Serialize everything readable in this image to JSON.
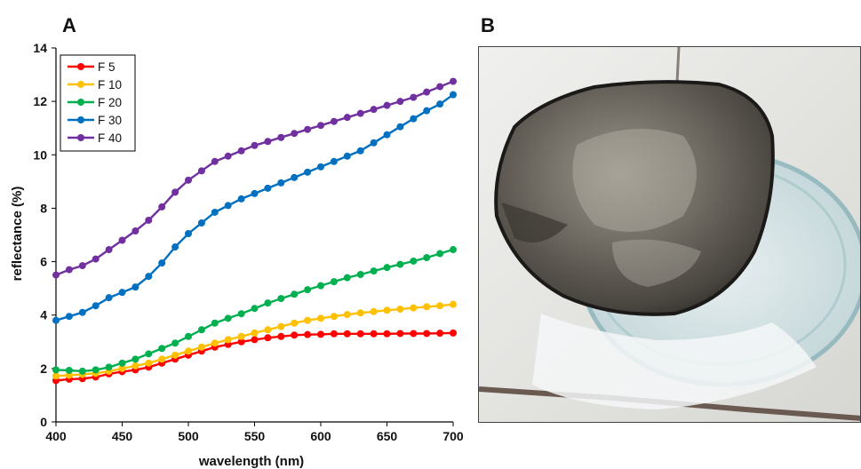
{
  "panels": {
    "a_label": "A",
    "b_label": "B"
  },
  "chart_data": {
    "type": "line",
    "xlabel": "wavelength (nm)",
    "ylabel": "reflectance (%)",
    "xlim": [
      400,
      700
    ],
    "ylim": [
      0,
      14
    ],
    "xticks": [
      400,
      450,
      500,
      550,
      600,
      650,
      700
    ],
    "yticks": [
      0,
      2,
      4,
      6,
      8,
      10,
      12,
      14
    ],
    "grid": false,
    "legend_position": "top-left",
    "x": [
      400,
      410,
      420,
      430,
      440,
      450,
      460,
      470,
      480,
      490,
      500,
      510,
      520,
      530,
      540,
      550,
      560,
      570,
      580,
      590,
      600,
      610,
      620,
      630,
      640,
      650,
      660,
      670,
      680,
      690,
      700
    ],
    "series": [
      {
        "name": "F 5",
        "color": "#ff0000",
        "values": [
          1.55,
          1.6,
          1.62,
          1.68,
          1.8,
          1.88,
          1.95,
          2.05,
          2.2,
          2.35,
          2.5,
          2.65,
          2.8,
          2.9,
          3.0,
          3.08,
          3.15,
          3.2,
          3.25,
          3.27,
          3.28,
          3.3,
          3.3,
          3.3,
          3.3,
          3.3,
          3.31,
          3.31,
          3.31,
          3.32,
          3.33
        ]
      },
      {
        "name": "F 10",
        "color": "#ffc000",
        "values": [
          1.72,
          1.75,
          1.78,
          1.82,
          1.9,
          2.0,
          2.1,
          2.2,
          2.35,
          2.5,
          2.65,
          2.8,
          2.95,
          3.08,
          3.2,
          3.33,
          3.45,
          3.57,
          3.7,
          3.8,
          3.88,
          3.95,
          4.02,
          4.08,
          4.13,
          4.18,
          4.22,
          4.27,
          4.31,
          4.35,
          4.4
        ]
      },
      {
        "name": "F 20",
        "color": "#00b050",
        "values": [
          1.95,
          1.93,
          1.9,
          1.95,
          2.05,
          2.2,
          2.35,
          2.55,
          2.75,
          2.95,
          3.2,
          3.45,
          3.7,
          3.88,
          4.05,
          4.25,
          4.45,
          4.62,
          4.78,
          4.95,
          5.1,
          5.25,
          5.4,
          5.52,
          5.65,
          5.78,
          5.9,
          6.02,
          6.15,
          6.3,
          6.45
        ]
      },
      {
        "name": "F 30",
        "color": "#0070c0",
        "values": [
          3.8,
          3.95,
          4.1,
          4.35,
          4.65,
          4.85,
          5.05,
          5.45,
          5.95,
          6.55,
          7.05,
          7.45,
          7.85,
          8.1,
          8.35,
          8.55,
          8.75,
          8.95,
          9.15,
          9.35,
          9.55,
          9.75,
          9.95,
          10.15,
          10.45,
          10.75,
          11.05,
          11.35,
          11.65,
          11.9,
          12.25
        ]
      },
      {
        "name": "F 40",
        "color": "#7030a0",
        "values": [
          5.5,
          5.7,
          5.85,
          6.1,
          6.45,
          6.8,
          7.15,
          7.55,
          8.05,
          8.6,
          9.05,
          9.4,
          9.75,
          9.95,
          10.15,
          10.35,
          10.5,
          10.65,
          10.8,
          10.95,
          11.1,
          11.25,
          11.4,
          11.55,
          11.7,
          11.85,
          12.0,
          12.15,
          12.35,
          12.55,
          12.75
        ]
      }
    ]
  },
  "photo": {
    "colors": {
      "tile": "#e4e4e0",
      "grout": "#6a5a52",
      "dish": "#d8e6e8",
      "disc": "#6a655e",
      "disc_rim": "#1c1a18"
    }
  }
}
